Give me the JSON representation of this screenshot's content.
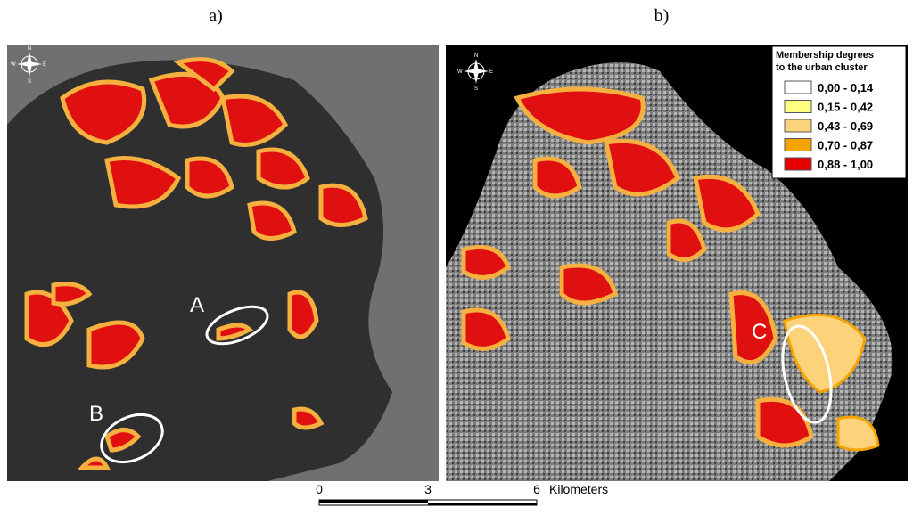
{
  "panels": [
    {
      "label": "a)",
      "annotations": [
        "A",
        "B"
      ]
    },
    {
      "label": "b)",
      "annotations": [
        "C"
      ]
    }
  ],
  "compass": {
    "north": "N",
    "south": "S",
    "east": "E",
    "west": "W"
  },
  "legend": {
    "title": [
      "Membership degrees",
      "to the urban cluster"
    ],
    "items": [
      {
        "label": "0,00 - 0,14",
        "color": "#ffffff"
      },
      {
        "label": "0,15 - 0,42",
        "color": "#ffff80"
      },
      {
        "label": "0,43 - 0,69",
        "color": "#fcd27a"
      },
      {
        "label": "0,70 - 0,87",
        "color": "#f5a300"
      },
      {
        "label": "0,88 - 1,00",
        "color": "#e60000"
      }
    ]
  },
  "scale_bar": {
    "ticks": [
      0,
      3,
      6
    ],
    "unit": "Kilometers"
  }
}
